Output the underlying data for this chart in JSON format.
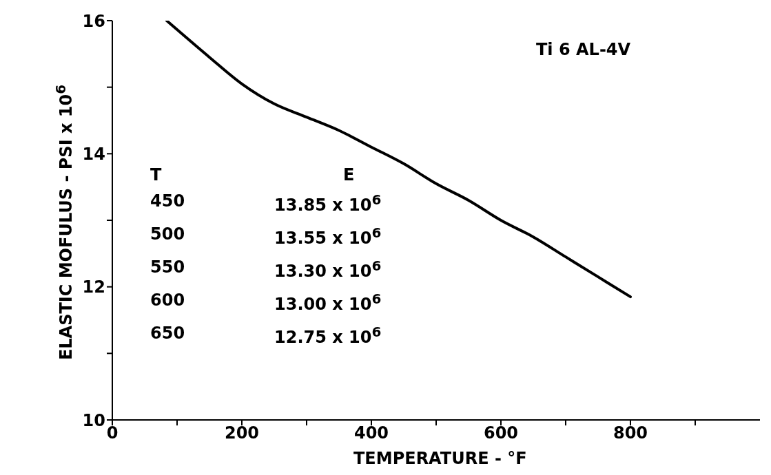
{
  "chart_data": {
    "type": "line",
    "xlabel": "TEMPERATURE - °F",
    "ylabel": "ELASTIC MOFULUS - PSI x 10$^{6}$",
    "annotations": [
      "Ti 6 AL-4V",
      "T",
      "E",
      "450",
      "13.85 x 10$^{6}$",
      "500",
      "13.55 x 10$^{6}$",
      "550",
      "13.30 x 10$^{6}$",
      "600",
      "13.00 x 10$^{6}$",
      "650",
      "12.75 x 10$^{6}$"
    ],
    "x": [
      84,
      150,
      200,
      250,
      300,
      350,
      400,
      450,
      500,
      550,
      600,
      650,
      700,
      750,
      800
    ],
    "series": [
      {
        "color": "#000000",
        "values": [
          16.0,
          15.45,
          15.05,
          14.75,
          14.55,
          14.35,
          14.1,
          13.85,
          13.55,
          13.3,
          13.0,
          12.75,
          12.45,
          12.15,
          11.85
        ]
      }
    ],
    "xlim": [
      0,
      1000
    ],
    "xticks": [
      0,
      {
        "value": 100,
        "label": null
      },
      200,
      {
        "value": 300,
        "label": null
      },
      400,
      {
        "value": 500,
        "label": null
      },
      600,
      {
        "value": 700,
        "label": null
      },
      800,
      {
        "value": 900,
        "label": null
      }
    ],
    "ylim": [
      10,
      16
    ],
    "yticks": [
      10,
      {
        "value": 11,
        "label": null
      },
      12,
      {
        "value": 13,
        "label": null
      },
      14,
      {
        "value": 15,
        "label": null
      },
      16
    ],
    "grid": false,
    "marker": "none",
    "line_style": "solid"
  }
}
